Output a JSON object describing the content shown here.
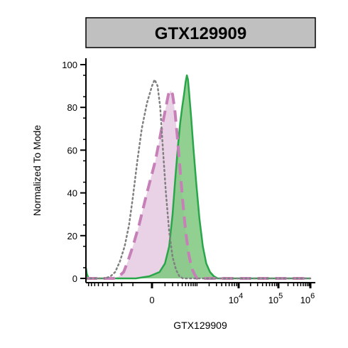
{
  "chart_data": {
    "type": "area",
    "title": "GTX129909",
    "xlabel": "GTX129909",
    "ylabel": "Normalized To Mode",
    "x_scale": "biexponential",
    "xlim": [
      -1000,
      1000000
    ],
    "ylim": [
      0,
      100
    ],
    "y_ticks": [
      "0",
      "20",
      "40",
      "60",
      "80",
      "100"
    ],
    "x_ticks": [
      {
        "value": 0,
        "label": "0",
        "sup": ""
      },
      {
        "value": 10000,
        "label": "10",
        "sup": "4"
      },
      {
        "value": 100000,
        "label": "10",
        "sup": "5"
      },
      {
        "value": 1000000,
        "label": "10",
        "sup": "6"
      }
    ],
    "grid": false,
    "series": [
      {
        "style": "dotted",
        "color": "#808080",
        "fill": "none",
        "points": [
          [
            -1000,
            0
          ],
          [
            -450,
            0
          ],
          [
            -350,
            1
          ],
          [
            -280,
            3
          ],
          [
            -220,
            8
          ],
          [
            -170,
            15
          ],
          [
            -130,
            25
          ],
          [
            -100,
            38
          ],
          [
            -70,
            55
          ],
          [
            -45,
            70
          ],
          [
            -20,
            82
          ],
          [
            0,
            90
          ],
          [
            15,
            93
          ],
          [
            35,
            90
          ],
          [
            55,
            80
          ],
          [
            80,
            60
          ],
          [
            110,
            40
          ],
          [
            150,
            22
          ],
          [
            200,
            10
          ],
          [
            260,
            4
          ],
          [
            330,
            1
          ],
          [
            420,
            0
          ],
          [
            1000000,
            0
          ]
        ]
      },
      {
        "style": "dashed",
        "color": "#c77fb8",
        "fill": "#ead2e6",
        "points": [
          [
            -1000,
            0
          ],
          [
            -300,
            0
          ],
          [
            -230,
            1
          ],
          [
            -180,
            3
          ],
          [
            -140,
            8
          ],
          [
            -100,
            15
          ],
          [
            -60,
            25
          ],
          [
            -20,
            40
          ],
          [
            20,
            55
          ],
          [
            60,
            68
          ],
          [
            100,
            78
          ],
          [
            140,
            86
          ],
          [
            170,
            88
          ],
          [
            200,
            86
          ],
          [
            240,
            78
          ],
          [
            290,
            65
          ],
          [
            350,
            50
          ],
          [
            420,
            35
          ],
          [
            500,
            22
          ],
          [
            600,
            12
          ],
          [
            720,
            5
          ],
          [
            860,
            2
          ],
          [
            1000,
            0
          ],
          [
            1000000,
            0
          ]
        ]
      },
      {
        "style": "solid",
        "color": "#2aa64a",
        "fill": "#7ec87e",
        "points": [
          [
            -1000,
            5
          ],
          [
            -960,
            2
          ],
          [
            -900,
            0
          ],
          [
            -80,
            0
          ],
          [
            -10,
            1
          ],
          [
            50,
            3
          ],
          [
            100,
            7
          ],
          [
            150,
            15
          ],
          [
            200,
            30
          ],
          [
            250,
            48
          ],
          [
            300,
            62
          ],
          [
            350,
            73
          ],
          [
            400,
            80
          ],
          [
            450,
            86
          ],
          [
            500,
            92
          ],
          [
            540,
            95
          ],
          [
            580,
            93
          ],
          [
            630,
            86
          ],
          [
            700,
            76
          ],
          [
            800,
            62
          ],
          [
            950,
            45
          ],
          [
            1150,
            28
          ],
          [
            1400,
            15
          ],
          [
            1700,
            7
          ],
          [
            2100,
            3
          ],
          [
            2600,
            1
          ],
          [
            3200,
            0
          ],
          [
            1000000,
            0
          ]
        ]
      }
    ]
  }
}
